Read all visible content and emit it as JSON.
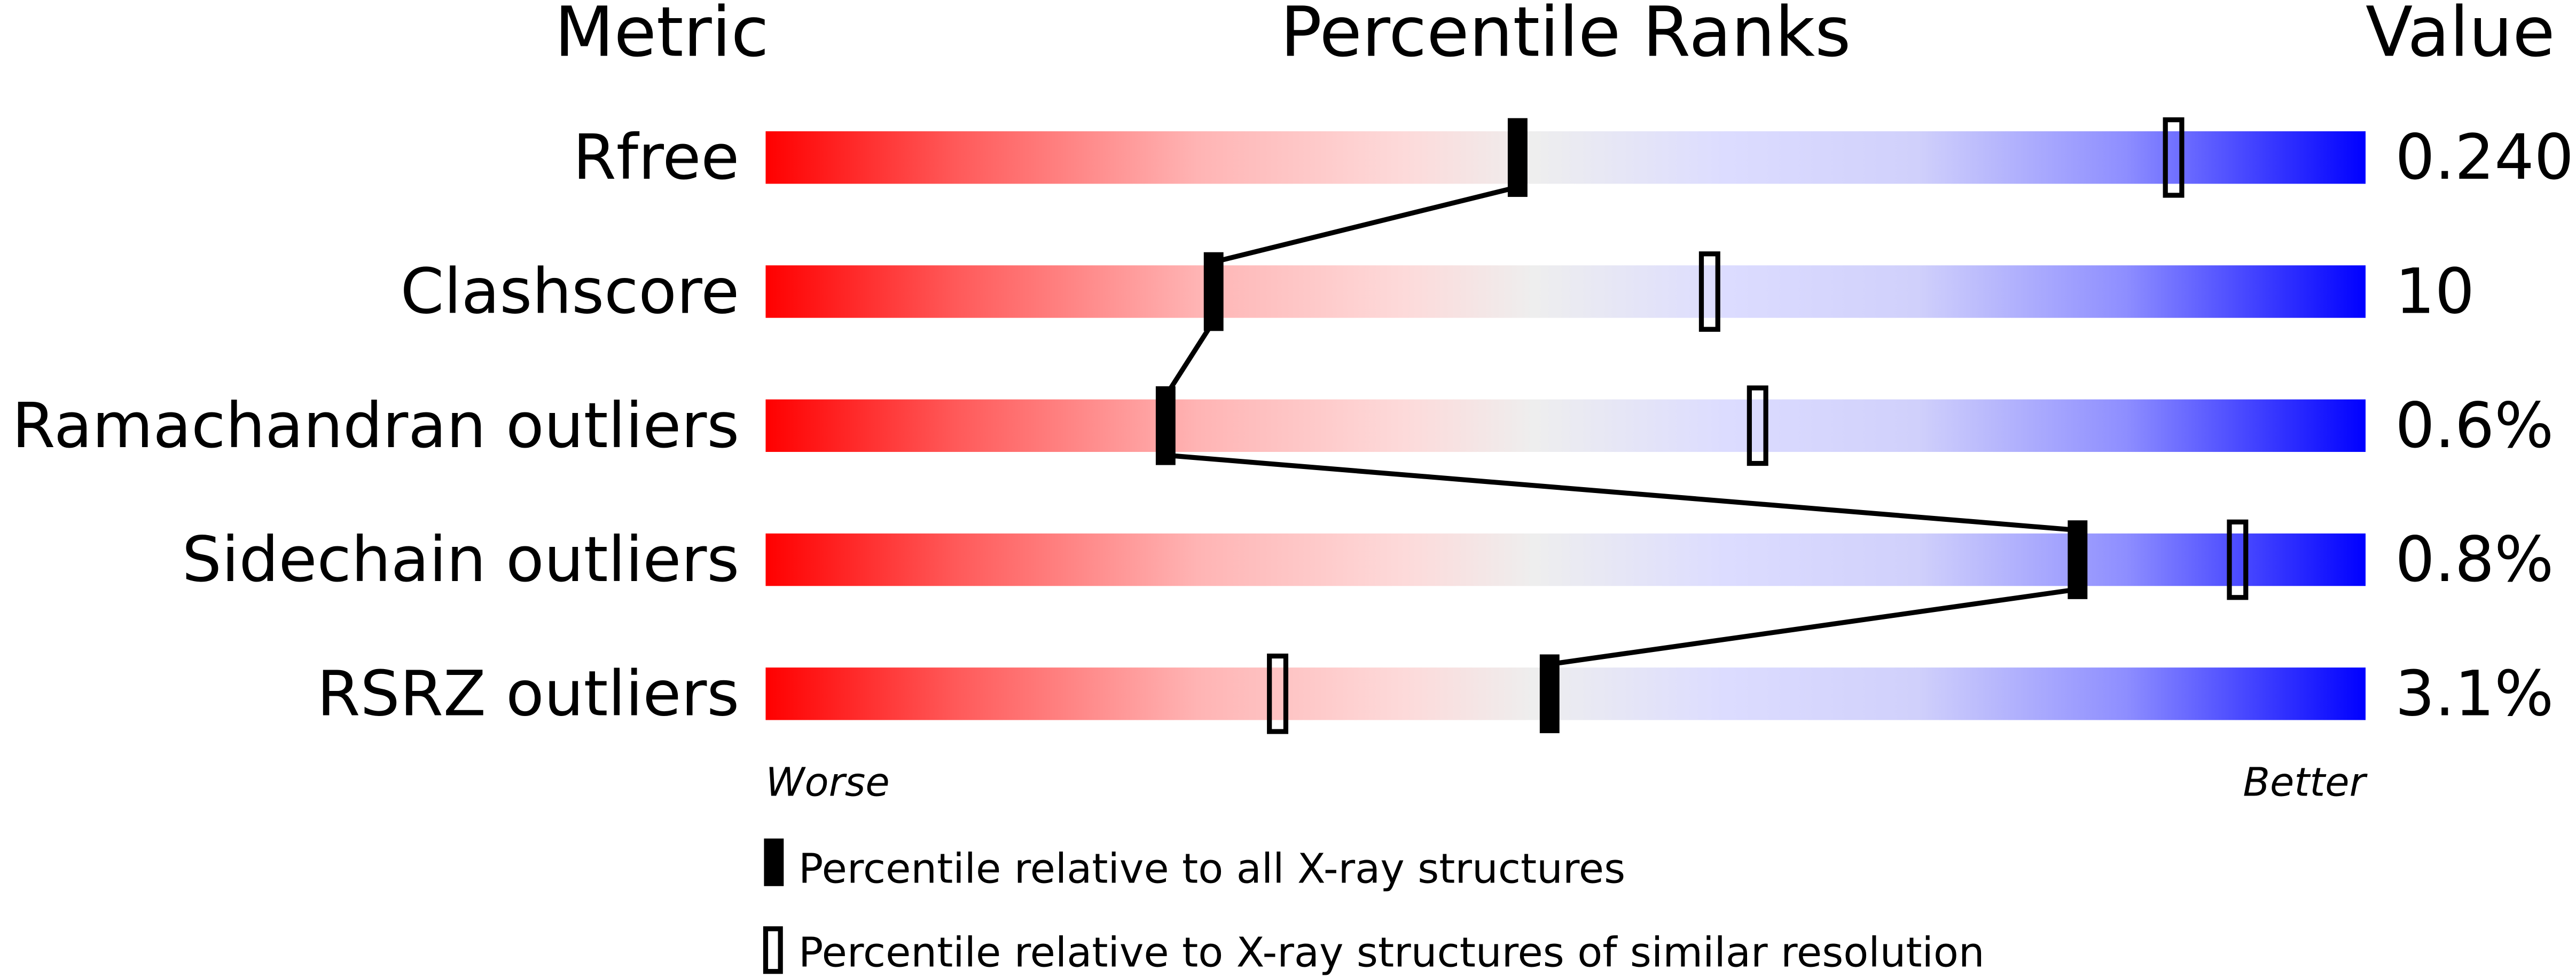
{
  "chart_data": {
    "type": "percentile-slider",
    "headers": {
      "metric": "Metric",
      "percentile": "Percentile Ranks",
      "value": "Value"
    },
    "axis": {
      "left_label": "Worse",
      "right_label": "Better",
      "range": [
        0,
        100
      ]
    },
    "rows": [
      {
        "metric": "Rfree",
        "value": "0.240",
        "percentile_all": 47,
        "percentile_similar": 88
      },
      {
        "metric": "Clashscore",
        "value": "10",
        "percentile_all": 28,
        "percentile_similar": 59
      },
      {
        "metric": "Ramachandran outliers",
        "value": "0.6%",
        "percentile_all": 25,
        "percentile_similar": 62
      },
      {
        "metric": "Sidechain outliers",
        "value": "0.8%",
        "percentile_all": 82,
        "percentile_similar": 92
      },
      {
        "metric": "RSRZ outliers",
        "value": "3.1%",
        "percentile_all": 49,
        "percentile_similar": 32
      }
    ],
    "legend": [
      {
        "marker": "filled",
        "label": "Percentile relative to all X-ray structures"
      },
      {
        "marker": "open",
        "label": "Percentile relative to X-ray structures of similar resolution"
      }
    ],
    "colors": {
      "worse": "#ff0000",
      "middle": "#eeeeee",
      "better": "#0000ff",
      "marker": "#000000"
    }
  }
}
